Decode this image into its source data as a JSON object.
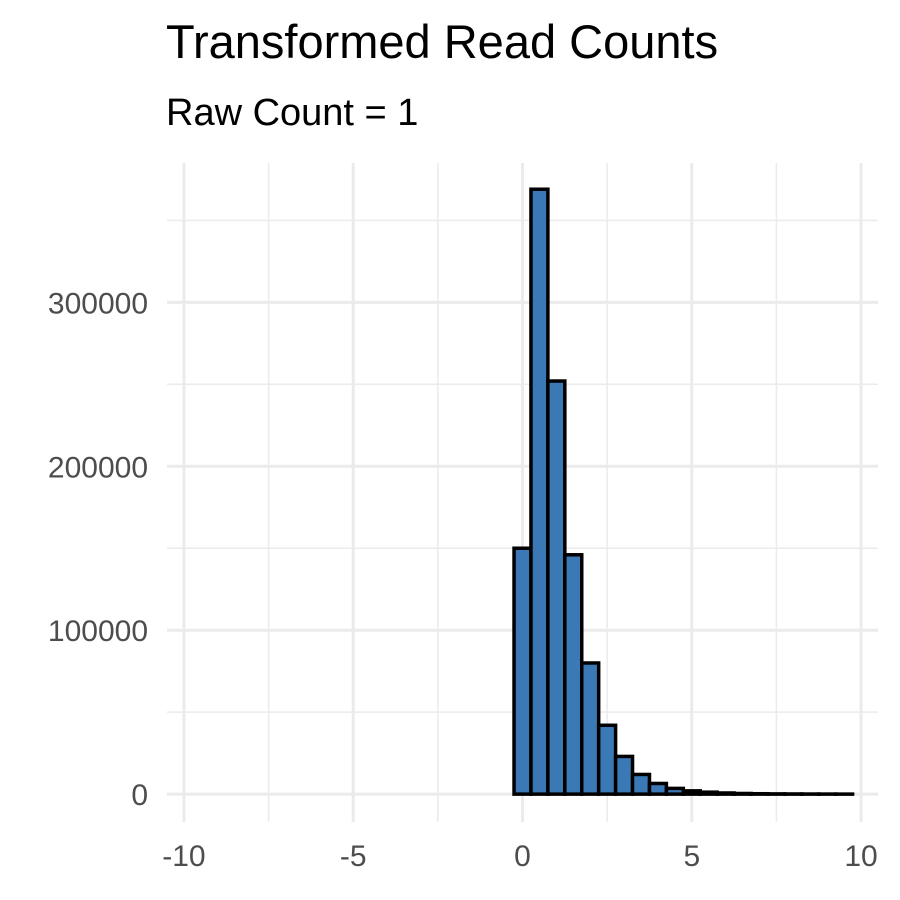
{
  "chart_data": {
    "type": "histogram",
    "title": "Transformed Read Counts",
    "subtitle": "Raw Count = 1",
    "xlabel": "",
    "ylabel": "",
    "xlim": [
      -10.5,
      10.5
    ],
    "ylim": [
      -17000,
      385000
    ],
    "x_ticks": [
      {
        "value": -10,
        "label": "-10"
      },
      {
        "value": -5,
        "label": "-5"
      },
      {
        "value": 0,
        "label": "0"
      },
      {
        "value": 5,
        "label": "5"
      },
      {
        "value": 10,
        "label": "10"
      }
    ],
    "y_ticks": [
      {
        "value": 0,
        "label": "0"
      },
      {
        "value": 100000,
        "label": "100000"
      },
      {
        "value": 200000,
        "label": "200000"
      },
      {
        "value": 300000,
        "label": "300000"
      }
    ],
    "bin_width": 0.5,
    "bins": [
      {
        "center": -9.5,
        "count": 0
      },
      {
        "center": -9.0,
        "count": 0
      },
      {
        "center": -8.5,
        "count": 0
      },
      {
        "center": -8.0,
        "count": 0
      },
      {
        "center": -7.5,
        "count": 0
      },
      {
        "center": -7.0,
        "count": 0
      },
      {
        "center": -6.5,
        "count": 0
      },
      {
        "center": -6.0,
        "count": 0
      },
      {
        "center": -5.5,
        "count": 0
      },
      {
        "center": -5.0,
        "count": 0
      },
      {
        "center": -4.5,
        "count": 0
      },
      {
        "center": -4.0,
        "count": 0
      },
      {
        "center": -3.5,
        "count": 0
      },
      {
        "center": -3.0,
        "count": 0
      },
      {
        "center": -2.5,
        "count": 0
      },
      {
        "center": -2.0,
        "count": 0
      },
      {
        "center": -1.5,
        "count": 0
      },
      {
        "center": -1.0,
        "count": 0
      },
      {
        "center": -0.5,
        "count": 0
      },
      {
        "center": 0.0,
        "count": 150000
      },
      {
        "center": 0.5,
        "count": 369000
      },
      {
        "center": 1.0,
        "count": 252000
      },
      {
        "center": 1.5,
        "count": 146000
      },
      {
        "center": 2.0,
        "count": 80000
      },
      {
        "center": 2.5,
        "count": 42000
      },
      {
        "center": 3.0,
        "count": 23000
      },
      {
        "center": 3.5,
        "count": 12000
      },
      {
        "center": 4.0,
        "count": 6500
      },
      {
        "center": 4.5,
        "count": 3500
      },
      {
        "center": 5.0,
        "count": 2000
      },
      {
        "center": 5.5,
        "count": 1200
      },
      {
        "center": 6.0,
        "count": 700
      },
      {
        "center": 6.5,
        "count": 400
      },
      {
        "center": 7.0,
        "count": 250
      },
      {
        "center": 7.5,
        "count": 150
      },
      {
        "center": 8.0,
        "count": 100
      },
      {
        "center": 8.5,
        "count": 60
      },
      {
        "center": 9.0,
        "count": 40
      },
      {
        "center": 9.5,
        "count": 20
      }
    ],
    "bar_fill": "#3A79B6",
    "bar_stroke": "#000000",
    "grid": true,
    "legend": "none"
  }
}
